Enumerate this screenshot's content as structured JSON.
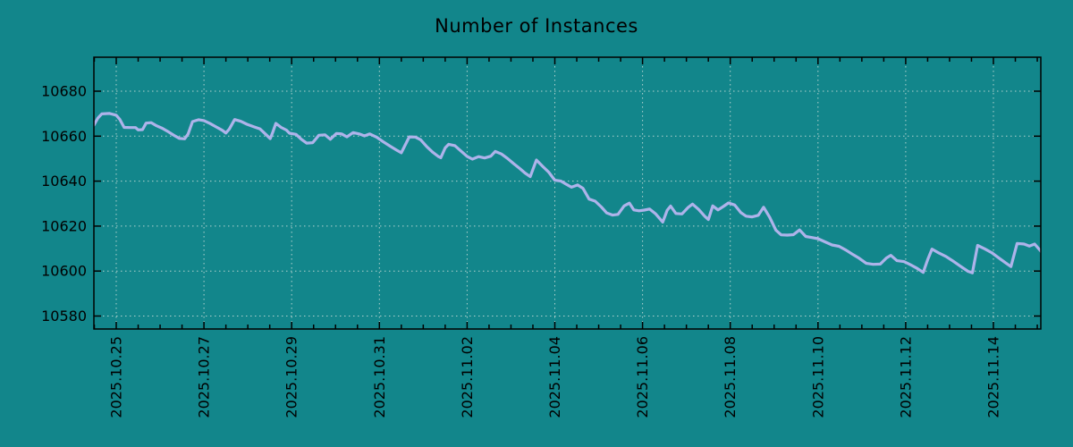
{
  "title": "Number of Instances",
  "colors": {
    "background": "#12868b",
    "line": "#aeb3ea",
    "grid": "#cfdfda",
    "axis": "#000000",
    "text": "#000000"
  },
  "chart_data": {
    "type": "line",
    "title": "Number of Instances",
    "xlabel": "",
    "ylabel": "",
    "grid": true,
    "legend": "none",
    "x_axis": {
      "tick_labels": [
        "2025.10.25",
        "2025.10.27",
        "2025.10.29",
        "2025.10.31",
        "2025.11.02",
        "2025.11.04",
        "2025.11.06",
        "2025.11.08",
        "2025.11.10",
        "2025.11.12",
        "2025.11.14"
      ],
      "tick_days": [
        0,
        2,
        4,
        6,
        8,
        10,
        12,
        14,
        16,
        18,
        20
      ],
      "minor_tick_interval_days": 0.5,
      "xlim_days": [
        -0.51,
        21.08
      ]
    },
    "y_axis": {
      "ticks": [
        10580,
        10600,
        10620,
        10640,
        10660,
        10680
      ],
      "ylim": [
        10574.6,
        10694.7
      ]
    },
    "series": [
      {
        "name": "instances",
        "points": [
          [
            -0.51,
            10664.9
          ],
          [
            -0.42,
            10668.0
          ],
          [
            -0.33,
            10669.9
          ],
          [
            -0.15,
            10670.1
          ],
          [
            0.0,
            10669.3
          ],
          [
            0.08,
            10667.5
          ],
          [
            0.18,
            10663.9
          ],
          [
            0.32,
            10663.8
          ],
          [
            0.44,
            10663.8
          ],
          [
            0.5,
            10662.8
          ],
          [
            0.6,
            10662.9
          ],
          [
            0.68,
            10665.8
          ],
          [
            0.8,
            10666.0
          ],
          [
            0.92,
            10664.6
          ],
          [
            1.05,
            10663.5
          ],
          [
            1.2,
            10661.8
          ],
          [
            1.32,
            10660.3
          ],
          [
            1.44,
            10659.0
          ],
          [
            1.56,
            10658.8
          ],
          [
            1.64,
            10661.0
          ],
          [
            1.74,
            10666.5
          ],
          [
            1.88,
            10667.3
          ],
          [
            2.0,
            10666.9
          ],
          [
            2.14,
            10665.6
          ],
          [
            2.28,
            10664.1
          ],
          [
            2.42,
            10662.6
          ],
          [
            2.5,
            10661.4
          ],
          [
            2.58,
            10663.2
          ],
          [
            2.7,
            10667.4
          ],
          [
            2.84,
            10666.6
          ],
          [
            2.98,
            10665.3
          ],
          [
            3.12,
            10664.3
          ],
          [
            3.28,
            10663.2
          ],
          [
            3.42,
            10660.6
          ],
          [
            3.51,
            10658.9
          ],
          [
            3.57,
            10661.8
          ],
          [
            3.64,
            10665.7
          ],
          [
            3.76,
            10663.9
          ],
          [
            3.88,
            10662.7
          ],
          [
            3.95,
            10661.3
          ],
          [
            4.1,
            10660.8
          ],
          [
            4.22,
            10658.6
          ],
          [
            4.34,
            10656.9
          ],
          [
            4.48,
            10657.1
          ],
          [
            4.62,
            10660.4
          ],
          [
            4.76,
            10660.6
          ],
          [
            4.88,
            10658.6
          ],
          [
            5.02,
            10661.2
          ],
          [
            5.14,
            10661.0
          ],
          [
            5.26,
            10659.7
          ],
          [
            5.4,
            10661.6
          ],
          [
            5.54,
            10661.0
          ],
          [
            5.66,
            10660.1
          ],
          [
            5.78,
            10661.0
          ],
          [
            5.94,
            10659.5
          ],
          [
            6.08,
            10657.6
          ],
          [
            6.24,
            10655.6
          ],
          [
            6.4,
            10653.7
          ],
          [
            6.5,
            10652.6
          ],
          [
            6.6,
            10656.5
          ],
          [
            6.68,
            10659.7
          ],
          [
            6.82,
            10659.6
          ],
          [
            6.94,
            10658.4
          ],
          [
            7.08,
            10655.3
          ],
          [
            7.22,
            10652.8
          ],
          [
            7.34,
            10651.0
          ],
          [
            7.4,
            10650.4
          ],
          [
            7.5,
            10654.8
          ],
          [
            7.58,
            10656.4
          ],
          [
            7.72,
            10655.8
          ],
          [
            7.86,
            10653.4
          ],
          [
            8.0,
            10651.0
          ],
          [
            8.12,
            10649.8
          ],
          [
            8.26,
            10650.9
          ],
          [
            8.4,
            10650.3
          ],
          [
            8.54,
            10651.1
          ],
          [
            8.64,
            10653.2
          ],
          [
            8.78,
            10652.1
          ],
          [
            8.92,
            10650.1
          ],
          [
            9.06,
            10647.8
          ],
          [
            9.2,
            10645.6
          ],
          [
            9.32,
            10643.6
          ],
          [
            9.44,
            10642.0
          ],
          [
            9.58,
            10649.4
          ],
          [
            9.72,
            10646.6
          ],
          [
            9.86,
            10644.0
          ],
          [
            10.0,
            10640.4
          ],
          [
            10.14,
            10640.0
          ],
          [
            10.26,
            10638.6
          ],
          [
            10.38,
            10637.3
          ],
          [
            10.52,
            10638.3
          ],
          [
            10.64,
            10636.8
          ],
          [
            10.78,
            10632.0
          ],
          [
            10.92,
            10631.1
          ],
          [
            11.06,
            10628.5
          ],
          [
            11.18,
            10625.9
          ],
          [
            11.32,
            10624.9
          ],
          [
            11.44,
            10625.2
          ],
          [
            11.58,
            10629.0
          ],
          [
            11.7,
            10630.2
          ],
          [
            11.8,
            10627.2
          ],
          [
            11.92,
            10626.8
          ],
          [
            12.04,
            10627.1
          ],
          [
            12.16,
            10627.6
          ],
          [
            12.3,
            10625.4
          ],
          [
            12.46,
            10621.8
          ],
          [
            12.56,
            10627.0
          ],
          [
            12.64,
            10628.9
          ],
          [
            12.76,
            10625.6
          ],
          [
            12.9,
            10625.4
          ],
          [
            13.04,
            10628.3
          ],
          [
            13.14,
            10629.8
          ],
          [
            13.28,
            10627.4
          ],
          [
            13.42,
            10624.3
          ],
          [
            13.5,
            10622.9
          ],
          [
            13.6,
            10629.0
          ],
          [
            13.72,
            10627.2
          ],
          [
            13.84,
            10628.7
          ],
          [
            13.96,
            10630.3
          ],
          [
            14.1,
            10629.4
          ],
          [
            14.24,
            10626.0
          ],
          [
            14.36,
            10624.4
          ],
          [
            14.5,
            10624.1
          ],
          [
            14.64,
            10624.8
          ],
          [
            14.76,
            10628.4
          ],
          [
            14.9,
            10623.9
          ],
          [
            15.04,
            10618.2
          ],
          [
            15.16,
            10616.1
          ],
          [
            15.3,
            10616.0
          ],
          [
            15.44,
            10616.2
          ],
          [
            15.58,
            10618.3
          ],
          [
            15.72,
            10615.4
          ],
          [
            15.86,
            10614.9
          ],
          [
            16.0,
            10614.4
          ],
          [
            16.16,
            10613.0
          ],
          [
            16.32,
            10611.6
          ],
          [
            16.48,
            10611.0
          ],
          [
            16.64,
            10609.3
          ],
          [
            16.8,
            10607.3
          ],
          [
            16.94,
            10605.7
          ],
          [
            17.1,
            10603.4
          ],
          [
            17.26,
            10603.0
          ],
          [
            17.42,
            10603.1
          ],
          [
            17.56,
            10605.8
          ],
          [
            17.66,
            10607.0
          ],
          [
            17.8,
            10604.6
          ],
          [
            17.96,
            10604.2
          ],
          [
            18.1,
            10602.9
          ],
          [
            18.26,
            10601.2
          ],
          [
            18.4,
            10599.4
          ],
          [
            18.5,
            10605.0
          ],
          [
            18.6,
            10609.8
          ],
          [
            18.76,
            10608.0
          ],
          [
            18.92,
            10606.5
          ],
          [
            19.08,
            10604.4
          ],
          [
            19.26,
            10602.0
          ],
          [
            19.42,
            10599.9
          ],
          [
            19.52,
            10599.2
          ],
          [
            19.64,
            10611.4
          ],
          [
            19.8,
            10609.9
          ],
          [
            19.96,
            10608.2
          ],
          [
            20.12,
            10605.9
          ],
          [
            20.28,
            10603.6
          ],
          [
            20.4,
            10602.0
          ],
          [
            20.54,
            10612.3
          ],
          [
            20.7,
            10612.0
          ],
          [
            20.82,
            10611.1
          ],
          [
            20.94,
            10612.0
          ],
          [
            21.04,
            10609.8
          ],
          [
            21.1,
            10608.4
          ]
        ]
      }
    ]
  }
}
